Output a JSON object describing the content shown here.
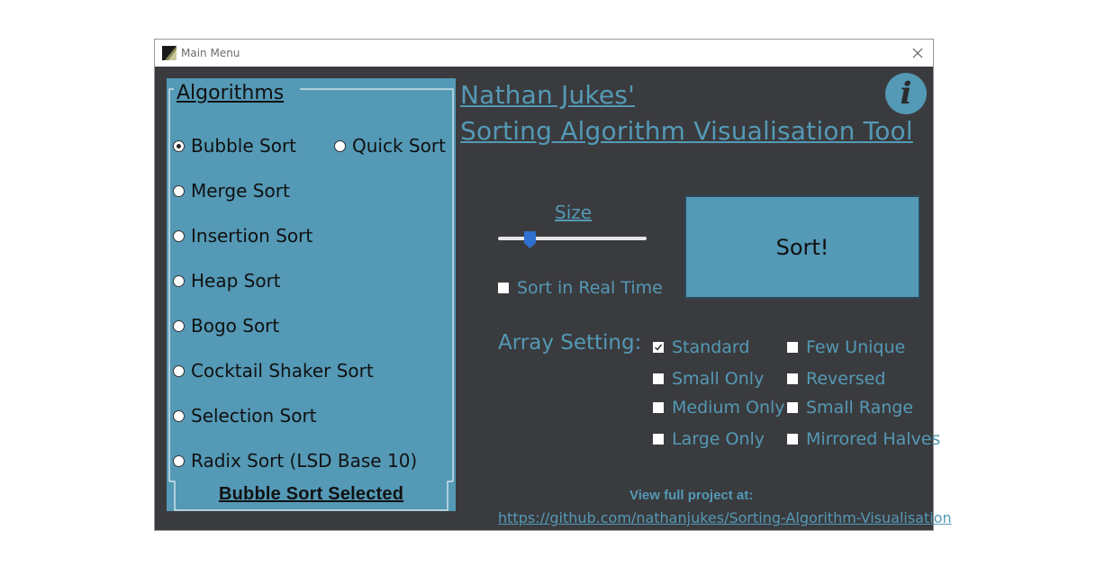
{
  "window": {
    "title": "Main Menu"
  },
  "algorithms": {
    "heading": "Algorithms",
    "options": [
      {
        "label": "Bubble Sort",
        "selected": true
      },
      {
        "label": "Quick Sort",
        "selected": false
      },
      {
        "label": "Merge Sort",
        "selected": false
      },
      {
        "label": "Insertion Sort",
        "selected": false
      },
      {
        "label": "Heap Sort",
        "selected": false
      },
      {
        "label": "Bogo Sort",
        "selected": false
      },
      {
        "label": "Cocktail Shaker Sort",
        "selected": false
      },
      {
        "label": "Selection Sort",
        "selected": false
      },
      {
        "label": "Radix Sort (LSD Base 10)",
        "selected": false
      }
    ],
    "selected_text": "Bubble Sort Selected"
  },
  "header": {
    "title_line1": "Nathan Jukes'",
    "title_line2": "Sorting Algorithm Visualisation Tool",
    "info_icon": "info-icon"
  },
  "size": {
    "label": "Size",
    "slider_fraction": 0.22
  },
  "realtime": {
    "label": "Sort in Real Time",
    "checked": false
  },
  "sort_button": {
    "label": "Sort!"
  },
  "array_setting": {
    "label": "Array Setting:",
    "options": [
      {
        "label": "Standard",
        "checked": true
      },
      {
        "label": "Few Unique",
        "checked": false
      },
      {
        "label": "Small Only",
        "checked": false
      },
      {
        "label": "Reversed",
        "checked": false
      },
      {
        "label": "Medium Only",
        "checked": false
      },
      {
        "label": "Small Range",
        "checked": false
      },
      {
        "label": "Large Only",
        "checked": false
      },
      {
        "label": "Mirrored Halves",
        "checked": false
      }
    ]
  },
  "footer": {
    "text": "View full project at:",
    "link": "https://github.com/nathanjukes/Sorting-Algorithm-Visualisation"
  },
  "colors": {
    "accent": "#5499b6",
    "background": "#3a3b3e"
  }
}
